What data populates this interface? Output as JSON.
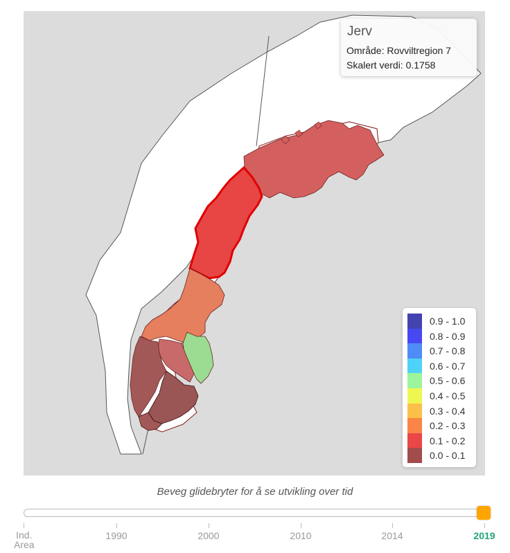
{
  "tooltip": {
    "species": "Jerv",
    "area_line": "Område: Rovviltregion 7",
    "value_line": "Skalert verdi: 0.1758"
  },
  "legend": [
    {
      "label": "0.9 - 1.0",
      "color": "#4343b0"
    },
    {
      "label": "0.8 - 0.9",
      "color": "#4848f2"
    },
    {
      "label": "0.7 - 0.8",
      "color": "#4f8cf7"
    },
    {
      "label": "0.6 - 0.7",
      "color": "#4fd2f7"
    },
    {
      "label": "0.5 - 0.6",
      "color": "#9cf59c"
    },
    {
      "label": "0.4 - 0.5",
      "color": "#eef752"
    },
    {
      "label": "0.3 - 0.4",
      "color": "#fcc04a"
    },
    {
      "label": "0.2 - 0.3",
      "color": "#fa8547"
    },
    {
      "label": "0.1 - 0.2",
      "color": "#ea4747"
    },
    {
      "label": "0.0 - 0.1",
      "color": "#a34c4c"
    }
  ],
  "slider": {
    "caption": "Beveg glidebryter for å se utvikling over tid",
    "selected_year": "2019",
    "accent_color": "#ffa500",
    "ticks": [
      {
        "label": "Ind. Area",
        "line1": "Ind.",
        "line2": "Area"
      },
      {
        "label": "1990"
      },
      {
        "label": "2000"
      },
      {
        "label": "2010"
      },
      {
        "label": "2014"
      },
      {
        "label": "2019"
      }
    ]
  },
  "map": {
    "background": "#dcdcdc",
    "highlighted_region": "Rovviltregion 7",
    "region_colors": {
      "rovviltregion_8_north": "#d45f5f",
      "rovviltregion_7_highlight": "#e84545",
      "rovviltregion_6": "#e57f5e",
      "rovviltregion_5": "#a35858",
      "rovviltregion_3": "#c96a6a",
      "rovviltregion_2": "#9bdc92"
    }
  }
}
